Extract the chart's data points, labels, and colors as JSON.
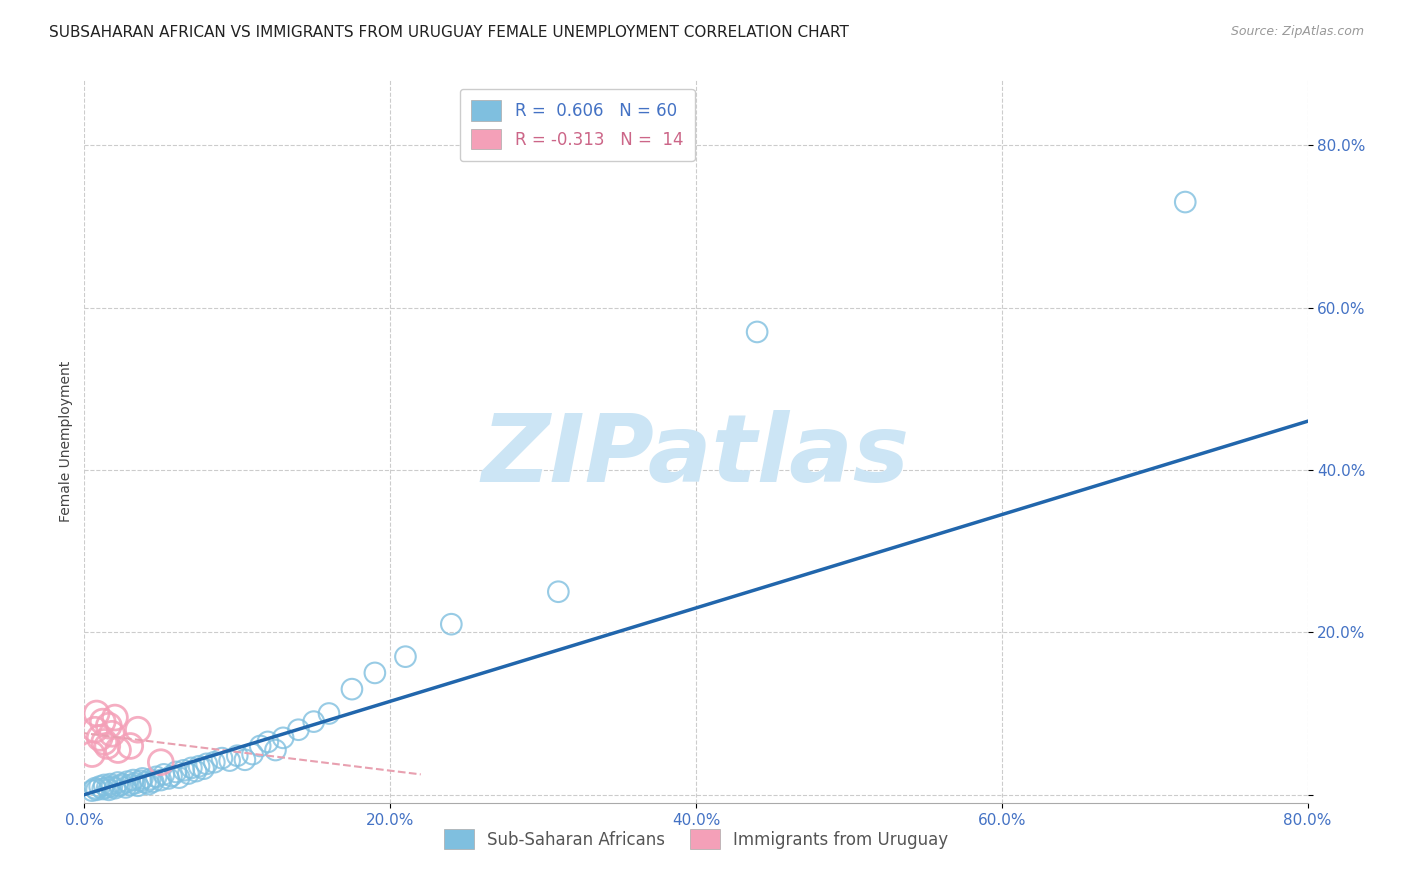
{
  "title": "SUBSAHARAN AFRICAN VS IMMIGRANTS FROM URUGUAY FEMALE UNEMPLOYMENT CORRELATION CHART",
  "source": "Source: ZipAtlas.com",
  "ylabel": "Female Unemployment",
  "xlim": [
    0.0,
    0.8
  ],
  "ylim": [
    -0.01,
    0.88
  ],
  "x_ticks": [
    0.0,
    0.2,
    0.4,
    0.6,
    0.8
  ],
  "y_ticks": [
    0.0,
    0.2,
    0.4,
    0.6,
    0.8
  ],
  "x_tick_labels": [
    "0.0%",
    "20.0%",
    "40.0%",
    "60.0%",
    "80.0%"
  ],
  "y_tick_labels": [
    "",
    "20.0%",
    "40.0%",
    "60.0%",
    "80.0%"
  ],
  "blue_R": 0.606,
  "blue_N": 60,
  "pink_R": -0.313,
  "pink_N": 14,
  "blue_color": "#7fbfdf",
  "pink_color": "#f4a0b8",
  "blue_line_color": "#2166ac",
  "pink_line_color": "#e8a0b0",
  "blue_line_text_color": "#4472c4",
  "pink_line_text_color": "#cc6688",
  "legend_label_blue": "Sub-Saharan Africans",
  "legend_label_pink": "Immigrants from Uruguay",
  "blue_scatter_x": [
    0.005,
    0.007,
    0.008,
    0.01,
    0.012,
    0.013,
    0.015,
    0.016,
    0.017,
    0.018,
    0.02,
    0.022,
    0.023,
    0.025,
    0.027,
    0.028,
    0.03,
    0.032,
    0.033,
    0.035,
    0.037,
    0.038,
    0.04,
    0.042,
    0.043,
    0.045,
    0.047,
    0.05,
    0.052,
    0.055,
    0.057,
    0.06,
    0.062,
    0.065,
    0.068,
    0.07,
    0.073,
    0.075,
    0.078,
    0.08,
    0.085,
    0.09,
    0.095,
    0.1,
    0.105,
    0.11,
    0.115,
    0.12,
    0.125,
    0.13,
    0.14,
    0.15,
    0.16,
    0.175,
    0.19,
    0.21,
    0.24,
    0.31,
    0.44,
    0.72
  ],
  "blue_scatter_y": [
    0.005,
    0.008,
    0.006,
    0.01,
    0.007,
    0.012,
    0.009,
    0.006,
    0.013,
    0.01,
    0.008,
    0.015,
    0.011,
    0.013,
    0.009,
    0.016,
    0.012,
    0.018,
    0.014,
    0.011,
    0.017,
    0.02,
    0.015,
    0.013,
    0.019,
    0.016,
    0.022,
    0.018,
    0.025,
    0.02,
    0.023,
    0.028,
    0.021,
    0.03,
    0.026,
    0.033,
    0.029,
    0.035,
    0.032,
    0.038,
    0.04,
    0.045,
    0.042,
    0.048,
    0.043,
    0.05,
    0.06,
    0.065,
    0.055,
    0.07,
    0.08,
    0.09,
    0.1,
    0.13,
    0.15,
    0.17,
    0.21,
    0.25,
    0.57,
    0.73
  ],
  "pink_scatter_x": [
    0.005,
    0.007,
    0.008,
    0.01,
    0.012,
    0.013,
    0.015,
    0.016,
    0.018,
    0.02,
    0.022,
    0.03,
    0.035,
    0.05
  ],
  "pink_scatter_y": [
    0.05,
    0.08,
    0.1,
    0.07,
    0.09,
    0.065,
    0.06,
    0.085,
    0.075,
    0.095,
    0.055,
    0.06,
    0.08,
    0.04
  ],
  "watermark": "ZIPatlas",
  "watermark_color": "#cce5f5",
  "background_color": "#ffffff",
  "title_fontsize": 11,
  "axis_label_fontsize": 10,
  "tick_fontsize": 11,
  "tick_color": "#4472c4",
  "legend_fontsize": 12
}
